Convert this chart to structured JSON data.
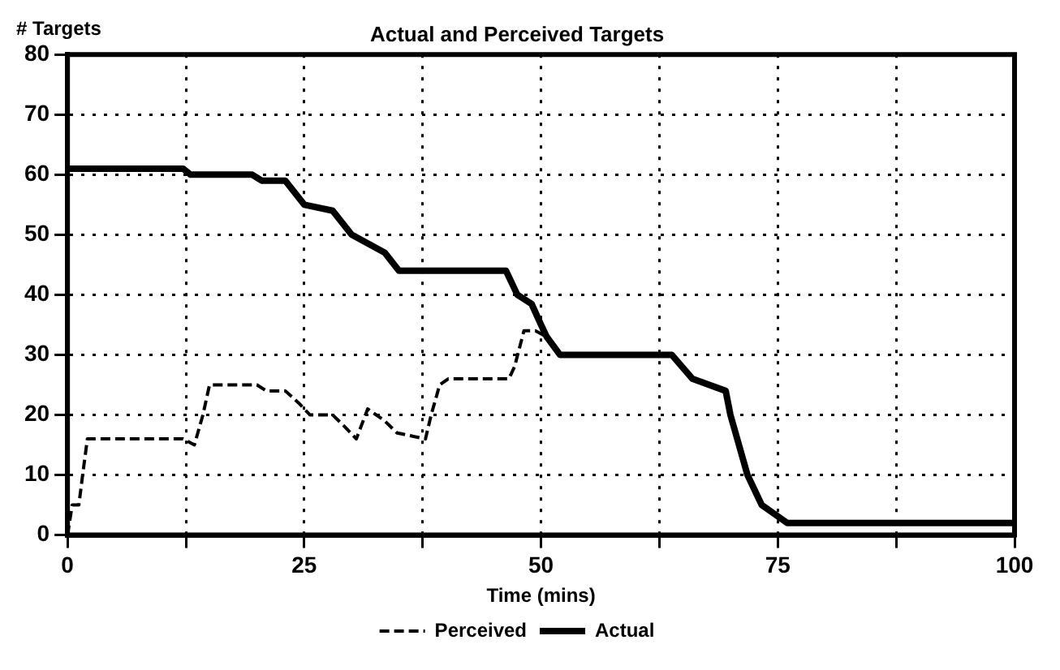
{
  "chart_data": {
    "type": "line",
    "title": "Actual and Perceived Targets",
    "xlabel": "Time (mins)",
    "ylabel": "# Targets",
    "xlim": [
      0,
      100
    ],
    "ylim": [
      0,
      80
    ],
    "xticks": [
      0,
      {
        "value": 12.5,
        "label": null
      },
      25,
      {
        "value": 37.5,
        "label": null
      },
      50,
      {
        "value": 62.5,
        "label": null
      },
      75,
      {
        "value": 87.5,
        "label": null
      },
      100
    ],
    "yticks": [
      0,
      10,
      20,
      30,
      40,
      50,
      60,
      70,
      80
    ],
    "grid": true,
    "legend": "bottom",
    "marker": "none",
    "series": [
      {
        "name": "Perceived",
        "color": "#000000",
        "line_style": "dashed",
        "x": [
          0,
          0.5,
          1.2,
          1.6,
          2.1,
          12.2,
          13.4,
          14.3,
          15,
          20,
          21,
          23,
          24.4,
          25.6,
          28,
          29.3,
          30.5,
          31.7,
          33.5,
          34.8,
          37.8,
          38.4,
          39.3,
          40.2,
          46.6,
          47.2,
          48.2,
          49.4,
          50.6,
          52,
          63.8,
          66,
          69.5,
          70,
          71.8,
          73.3,
          76,
          100
        ],
        "values": [
          0,
          5,
          5,
          10,
          16,
          16,
          15,
          20,
          25,
          25,
          24,
          24,
          22,
          20,
          20,
          18,
          16,
          21,
          19,
          17,
          16,
          20,
          25,
          26,
          26,
          28,
          34,
          34,
          33,
          30,
          30,
          26,
          24,
          20,
          10,
          5,
          2,
          2
        ]
      },
      {
        "name": "Actual",
        "color": "#000000",
        "line_style": "solid",
        "x": [
          0,
          12.2,
          13,
          19.5,
          20.5,
          23,
          25,
          28,
          30,
          33.5,
          35,
          46.3,
          47.5,
          49,
          50,
          50.6,
          52,
          63.8,
          66,
          69.5,
          70,
          71.8,
          73.3,
          76,
          100
        ],
        "values": [
          61,
          61,
          60,
          60,
          59,
          59,
          55,
          54,
          50,
          47,
          44,
          44,
          40,
          38.5,
          35,
          33,
          30,
          30,
          26,
          24,
          20,
          10,
          5,
          2,
          2
        ]
      }
    ]
  }
}
